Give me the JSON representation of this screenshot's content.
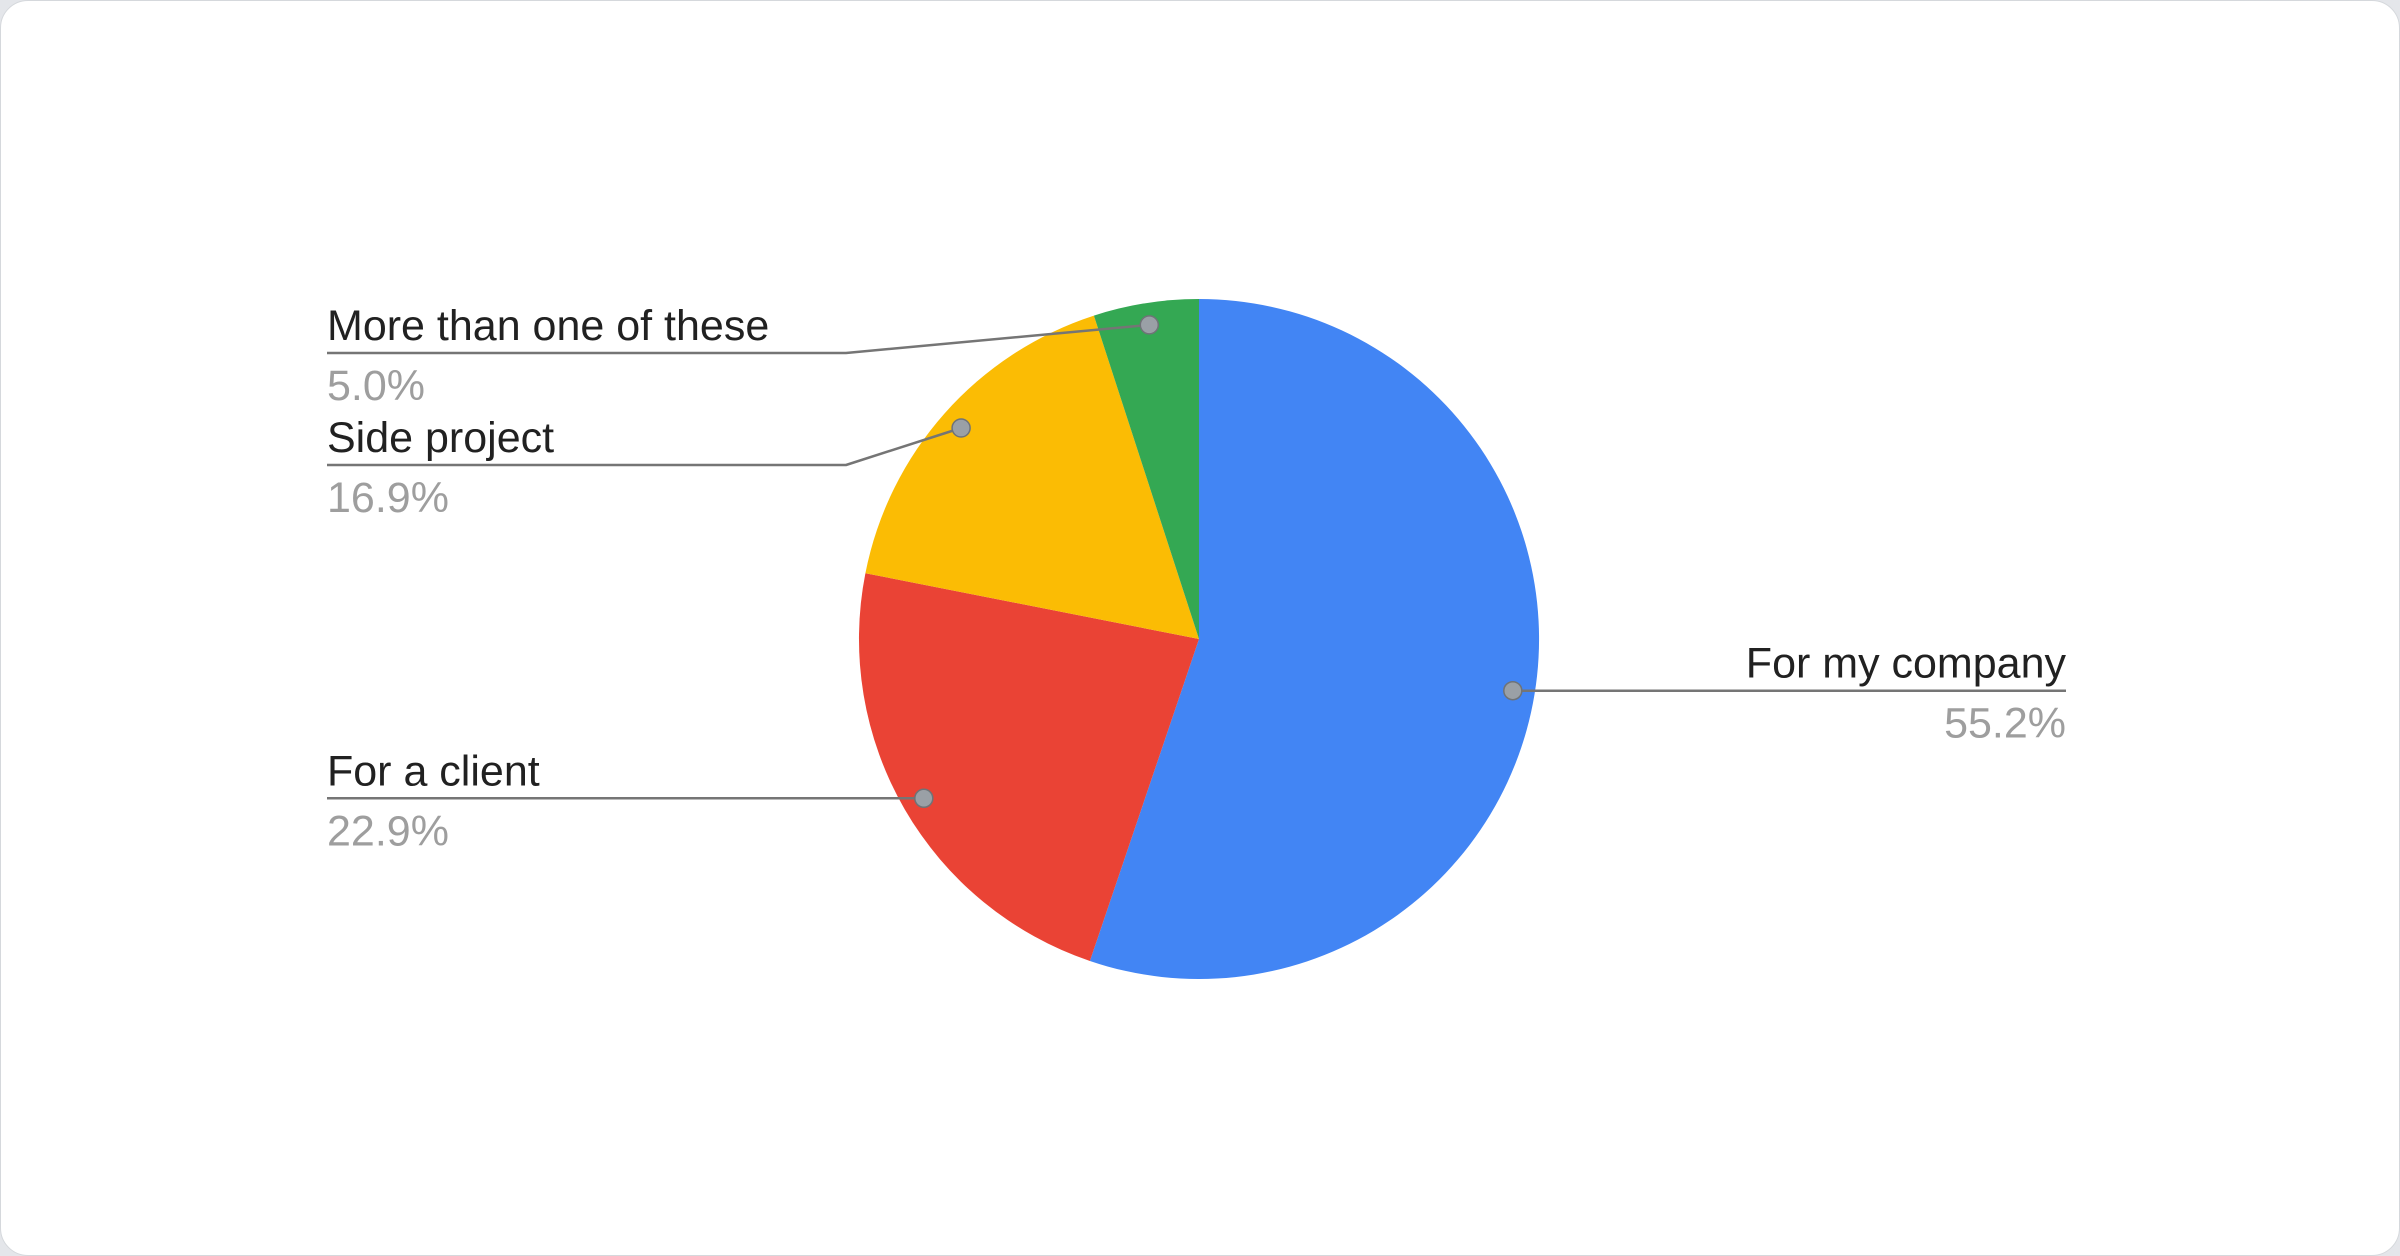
{
  "page": {
    "background_color": "#e4e6ea",
    "card_background_color": "#ffffff"
  },
  "chart_data": {
    "type": "pie",
    "title": "",
    "legend_position": "labeled-callouts",
    "start_angle": "12-o'clock",
    "direction": "clockwise",
    "categories": [
      "For my company",
      "For a client",
      "Side project",
      "More than one of these"
    ],
    "values": [
      55.2,
      22.9,
      16.9,
      5.0
    ],
    "display_percents": [
      "55.2%",
      "22.9%",
      "16.9%",
      "5.0%"
    ],
    "colors": [
      "#4285f4",
      "#ea4335",
      "#fbbc04",
      "#34a853"
    ],
    "label_text_color": "#212121",
    "percent_text_color": "#9e9e9e",
    "leader_line_color": "#757575",
    "leader_dot_color": "#9aa0a6"
  }
}
